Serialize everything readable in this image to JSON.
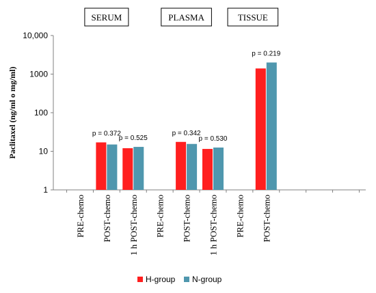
{
  "chart_data": {
    "type": "bar",
    "ylabel": "Paclitaxel (ng/ml o mg/ml)",
    "yscale": "log",
    "ylim": [
      1,
      10000
    ],
    "yticks": [
      "1",
      "10",
      "100",
      "1000",
      "10,000"
    ],
    "grid": false,
    "legend_position": "bottom",
    "groups": [
      {
        "label": "SERUM",
        "categories": [
          0,
          1,
          2
        ]
      },
      {
        "label": "PLASMA",
        "categories": [
          3,
          4,
          5
        ]
      },
      {
        "label": "TISSUE",
        "categories": [
          6,
          7
        ]
      }
    ],
    "categories": [
      "PRE-chemo",
      "POST-chemo",
      "1 h POST-chemo",
      "PRE-chemo",
      "POST-chemo",
      "1 h POST-chemo",
      "PRE-chemo",
      "POST-chemo"
    ],
    "series": [
      {
        "name": "H-group",
        "color": "#ff1f1f",
        "values": [
          null,
          17,
          12,
          null,
          17.5,
          11.5,
          null,
          1400
        ]
      },
      {
        "name": "N-group",
        "color": "#4f97ae",
        "values": [
          null,
          15,
          13,
          null,
          15.5,
          12.5,
          null,
          2000
        ]
      }
    ],
    "annotations": [
      {
        "category": 1,
        "text": "p = 0.372"
      },
      {
        "category": 2,
        "text": "p = 0.525"
      },
      {
        "category": 4,
        "text": "p = 0.342"
      },
      {
        "category": 5,
        "text": "p = 0.530"
      },
      {
        "category": 7,
        "text": "p = 0.219"
      }
    ]
  }
}
